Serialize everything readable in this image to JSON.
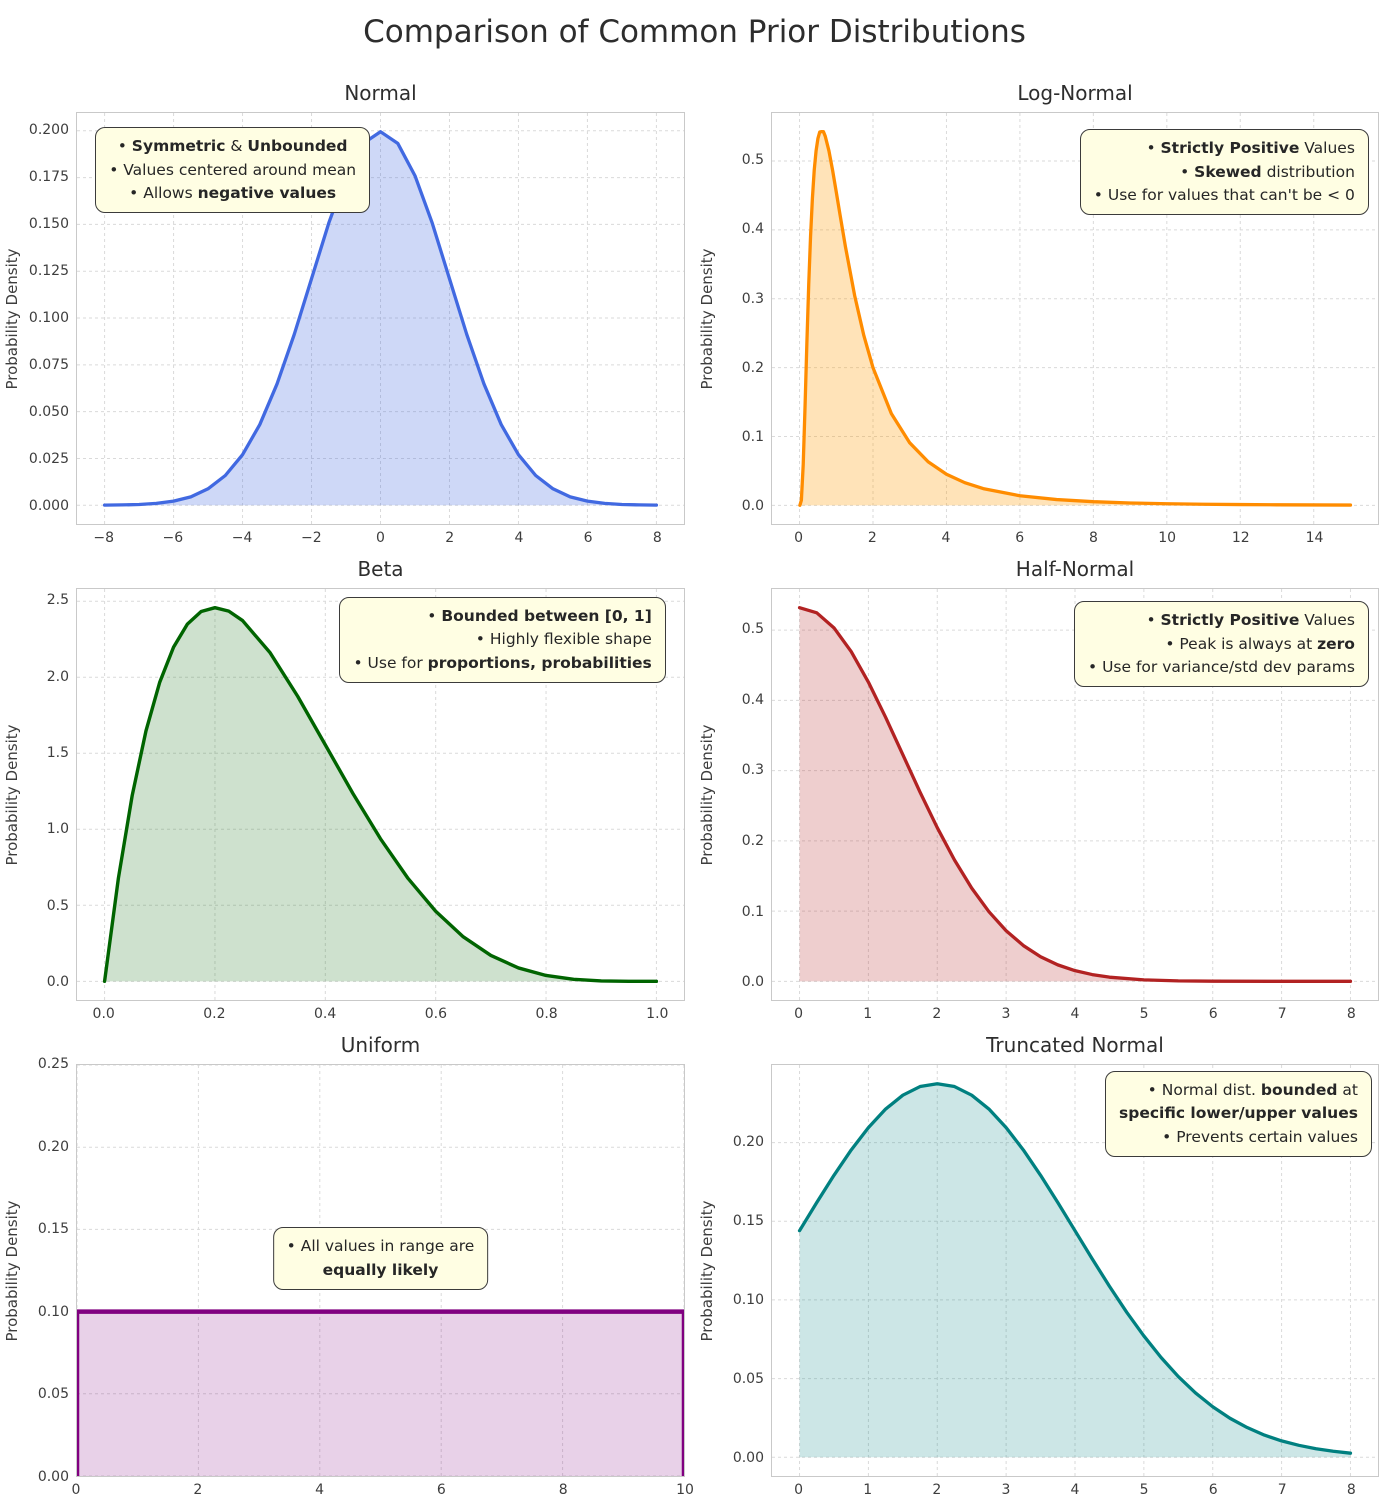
{
  "page_title": "Comparison of Common Prior Distributions",
  "chart_data": [
    {
      "type": "area",
      "title": "Normal",
      "ylabel": "Probability Density",
      "line_color": "#4169e1",
      "fill_color": "rgba(65,105,225,0.26)",
      "line_width": 3.3,
      "xlim": [
        -8.8,
        8.8
      ],
      "ylim": [
        -0.01,
        0.2095
      ],
      "xticks": [
        -8,
        -6,
        -4,
        -2,
        0,
        2,
        4,
        6,
        8
      ],
      "xtick_labels": [
        "−8",
        "−6",
        "−4",
        "−2",
        "0",
        "2",
        "4",
        "6",
        "8"
      ],
      "yticks": [
        0,
        0.025,
        0.05,
        0.075,
        0.1,
        0.125,
        0.15,
        0.175,
        0.2
      ],
      "ytick_labels": [
        "0.000",
        "0.025",
        "0.050",
        "0.075",
        "0.100",
        "0.125",
        "0.150",
        "0.175",
        "0.200"
      ],
      "x": [
        -8,
        -7.5,
        -7,
        -6.5,
        -6,
        -5.5,
        -5,
        -4.5,
        -4,
        -3.5,
        -3,
        -2.5,
        -2,
        -1.5,
        -1,
        -0.5,
        0,
        0.5,
        1,
        1.5,
        2,
        2.5,
        3,
        3.5,
        4,
        4.5,
        5,
        5.5,
        6,
        6.5,
        7,
        7.5,
        8
      ],
      "y": [
        0.0001,
        0.0002,
        0.0004,
        0.001,
        0.0022,
        0.0045,
        0.0088,
        0.0159,
        0.027,
        0.0431,
        0.0648,
        0.0913,
        0.121,
        0.1507,
        0.176,
        0.1933,
        0.1995,
        0.1933,
        0.176,
        0.1507,
        0.121,
        0.0913,
        0.0648,
        0.0431,
        0.027,
        0.0159,
        0.0088,
        0.0045,
        0.0022,
        0.001,
        0.0004,
        0.0002,
        0.0001
      ],
      "annotation": {
        "align": "center",
        "pos": {
          "left": "3%",
          "top": "3.5%"
        },
        "lines": [
          [
            {
              "t": "• ",
              "b": false
            },
            {
              "t": "Symmetric",
              "b": true
            },
            {
              "t": " & ",
              "b": false
            },
            {
              "t": "Unbounded",
              "b": true
            }
          ],
          [
            {
              "t": "• Values centered around mean",
              "b": false
            }
          ],
          [
            {
              "t": "• Allows ",
              "b": false
            },
            {
              "t": "negative values",
              "b": true
            }
          ]
        ]
      }
    },
    {
      "type": "area",
      "title": "Log-Normal",
      "ylabel": "Probability Density",
      "line_color": "#ff8c00",
      "fill_color": "rgba(255,153,0,0.28)",
      "line_width": 3.3,
      "xlim": [
        -0.75,
        15.75
      ],
      "ylim": [
        -0.0271,
        0.5698
      ],
      "xticks": [
        0,
        2,
        4,
        6,
        8,
        10,
        12,
        14
      ],
      "xtick_labels": [
        "0",
        "2",
        "4",
        "6",
        "8",
        "10",
        "12",
        "14"
      ],
      "yticks": [
        0,
        0.1,
        0.2,
        0.3,
        0.4,
        0.5
      ],
      "ytick_labels": [
        "0.0",
        "0.1",
        "0.2",
        "0.3",
        "0.4",
        "0.5"
      ],
      "x": [
        0.01,
        0.05,
        0.1,
        0.15,
        0.2,
        0.25,
        0.3,
        0.35,
        0.4,
        0.45,
        0.5,
        0.55,
        0.6,
        0.65,
        0.7,
        0.8,
        0.9,
        1,
        1.1,
        1.25,
        1.5,
        1.75,
        2,
        2.5,
        3,
        3.5,
        4,
        4.5,
        5,
        6,
        7,
        8,
        9,
        10,
        11,
        12,
        13,
        14,
        15
      ],
      "y": [
        0,
        0.0075,
        0.0592,
        0.144,
        0.2366,
        0.3209,
        0.391,
        0.4458,
        0.487,
        0.5148,
        0.5326,
        0.5423,
        0.5428,
        0.5427,
        0.536,
        0.5149,
        0.4866,
        0.455,
        0.4227,
        0.3755,
        0.3048,
        0.2467,
        0.1999,
        0.1332,
        0.0908,
        0.0633,
        0.0452,
        0.0329,
        0.0243,
        0.0139,
        0.0084,
        0.0053,
        0.0034,
        0.0023,
        0.0016,
        0.0011,
        0.0008,
        0.0006,
        0.0004
      ],
      "annotation": {
        "align": "right",
        "pos": {
          "right": "1.5%",
          "top": "4%"
        },
        "lines": [
          [
            {
              "t": "• ",
              "b": false
            },
            {
              "t": "Strictly Positive",
              "b": true
            },
            {
              "t": " Values",
              "b": false
            }
          ],
          [
            {
              "t": "• ",
              "b": false
            },
            {
              "t": "Skewed",
              "b": true
            },
            {
              "t": " distribution",
              "b": false
            }
          ],
          [
            {
              "t": "• Use for values that can't be < 0",
              "b": false
            }
          ]
        ]
      }
    },
    {
      "type": "area",
      "title": "Beta",
      "ylabel": "Probability Density",
      "line_color": "#006400",
      "fill_color": "rgba(34,120,34,0.22)",
      "line_width": 3.4,
      "xlim": [
        -0.05,
        1.05
      ],
      "ylim": [
        -0.1229,
        2.5805
      ],
      "xticks": [
        0,
        0.2,
        0.4,
        0.6,
        0.8,
        1
      ],
      "xtick_labels": [
        "0.0",
        "0.2",
        "0.4",
        "0.6",
        "0.8",
        "1.0"
      ],
      "yticks": [
        0,
        0.5,
        1,
        1.5,
        2,
        2.5
      ],
      "ytick_labels": [
        "0.0",
        "0.5",
        "1.0",
        "1.5",
        "2.0",
        "2.5"
      ],
      "x": [
        0,
        0.025,
        0.05,
        0.075,
        0.1,
        0.125,
        0.15,
        0.175,
        0.2,
        0.225,
        0.25,
        0.3,
        0.35,
        0.4,
        0.45,
        0.5,
        0.55,
        0.6,
        0.65,
        0.7,
        0.75,
        0.8,
        0.85,
        0.9,
        0.95,
        1
      ],
      "y": [
        0,
        0.6778,
        1.2218,
        1.6473,
        1.9683,
        2.1981,
        2.3495,
        2.4322,
        2.4576,
        2.4352,
        2.373,
        2.1609,
        1.8742,
        1.5552,
        1.2354,
        0.9375,
        0.6765,
        0.4608,
        0.2925,
        0.1701,
        0.0879,
        0.0384,
        0.0129,
        0.0027,
        0.0002,
        0
      ],
      "annotation": {
        "align": "right",
        "pos": {
          "right": "3%",
          "top": "2%"
        },
        "lines": [
          [
            {
              "t": "• ",
              "b": false
            },
            {
              "t": "Bounded between [0, 1]",
              "b": true
            }
          ],
          [
            {
              "t": "• Highly flexible shape",
              "b": false
            }
          ],
          [
            {
              "t": "• Use for ",
              "b": false
            },
            {
              "t": "proportions, probabilities",
              "b": true
            }
          ]
        ]
      }
    },
    {
      "type": "area",
      "title": "Half-Normal",
      "ylabel": "Probability Density",
      "line_color": "#b22222",
      "fill_color": "rgba(178,34,34,0.22)",
      "line_width": 3.3,
      "xlim": [
        -0.4,
        8.4
      ],
      "ylim": [
        -0.0266,
        0.5585
      ],
      "xticks": [
        0,
        1,
        2,
        3,
        4,
        5,
        6,
        7,
        8
      ],
      "xtick_labels": [
        "0",
        "1",
        "2",
        "3",
        "4",
        "5",
        "6",
        "7",
        "8"
      ],
      "yticks": [
        0,
        0.1,
        0.2,
        0.3,
        0.4,
        0.5
      ],
      "ytick_labels": [
        "0.0",
        "0.1",
        "0.2",
        "0.3",
        "0.4",
        "0.5"
      ],
      "x": [
        0,
        0.25,
        0.5,
        0.75,
        1,
        1.25,
        1.5,
        1.75,
        2,
        2.25,
        2.5,
        2.75,
        3,
        3.25,
        3.5,
        3.75,
        4,
        4.25,
        4.5,
        5,
        5.5,
        6,
        7,
        8
      ],
      "y": [
        0.5319,
        0.5246,
        0.5032,
        0.4694,
        0.4259,
        0.3758,
        0.3226,
        0.2693,
        0.2187,
        0.1727,
        0.1327,
        0.0991,
        0.072,
        0.0509,
        0.0349,
        0.0234,
        0.0152,
        0.0096,
        0.0059,
        0.0021,
        0.0006,
        0.0002,
        0,
        0
      ],
      "annotation": {
        "align": "right",
        "pos": {
          "right": "1.5%",
          "top": "3%"
        },
        "lines": [
          [
            {
              "t": "• ",
              "b": false
            },
            {
              "t": "Strictly Positive",
              "b": true
            },
            {
              "t": " Values",
              "b": false
            }
          ],
          [
            {
              "t": "• Peak is always at ",
              "b": false
            },
            {
              "t": "zero",
              "b": true
            }
          ],
          [
            {
              "t": "• Use for variance/std dev params",
              "b": false
            }
          ]
        ]
      }
    },
    {
      "type": "area",
      "title": "Uniform",
      "ylabel": "Probability Density",
      "line_color": "#800080",
      "fill_color": "rgba(128,0,128,0.18)",
      "line_width": 4.5,
      "xlim": [
        0,
        10
      ],
      "ylim": [
        0,
        0.25
      ],
      "xticks": [
        0,
        2,
        4,
        6,
        8,
        10
      ],
      "xtick_labels": [
        "0",
        "2",
        "4",
        "6",
        "8",
        "10"
      ],
      "yticks": [
        0,
        0.05,
        0.1,
        0.15,
        0.2,
        0.25
      ],
      "ytick_labels": [
        "0.00",
        "0.05",
        "0.10",
        "0.15",
        "0.20",
        "0.25"
      ],
      "x": [
        0,
        0,
        10,
        10
      ],
      "y": [
        0,
        0.1,
        0.1,
        0
      ],
      "annotation": {
        "align": "center",
        "center_x": true,
        "pos": {
          "left": "50%",
          "top": "39.5%"
        },
        "lines": [
          [
            {
              "t": "• All values in range are",
              "b": false
            }
          ],
          [
            {
              "t": "equally likely",
              "b": true
            }
          ]
        ]
      }
    },
    {
      "type": "area",
      "title": "Truncated Normal",
      "ylabel": "Probability Density",
      "line_color": "#008080",
      "fill_color": "rgba(0,128,128,0.2)",
      "line_width": 3.3,
      "xlim": [
        -0.4,
        8.4
      ],
      "ylim": [
        -0.0119,
        0.2493
      ],
      "xticks": [
        0,
        1,
        2,
        3,
        4,
        5,
        6,
        7,
        8
      ],
      "xtick_labels": [
        "0",
        "1",
        "2",
        "3",
        "4",
        "5",
        "6",
        "7",
        "8"
      ],
      "yticks": [
        0,
        0.05,
        0.1,
        0.15,
        0.2
      ],
      "ytick_labels": [
        "0.00",
        "0.05",
        "0.10",
        "0.15",
        "0.20"
      ],
      "x": [
        0,
        0.25,
        0.5,
        0.75,
        1,
        1.25,
        1.5,
        1.75,
        2,
        2.25,
        2.5,
        2.75,
        3,
        3.25,
        3.5,
        3.75,
        4,
        4.25,
        4.5,
        4.75,
        5,
        5.25,
        5.5,
        5.75,
        6,
        6.25,
        6.5,
        6.75,
        7,
        7.25,
        7.5,
        7.75,
        8
      ],
      "y": [
        0.144,
        0.1619,
        0.1792,
        0.1953,
        0.2095,
        0.2213,
        0.2301,
        0.2356,
        0.2374,
        0.2356,
        0.2301,
        0.2213,
        0.2095,
        0.1953,
        0.1792,
        0.1619,
        0.144,
        0.1261,
        0.1087,
        0.0922,
        0.0771,
        0.0634,
        0.0513,
        0.0409,
        0.0321,
        0.0248,
        0.0189,
        0.0141,
        0.0104,
        0.0076,
        0.0054,
        0.0038,
        0.0026
      ],
      "annotation": {
        "align": "right",
        "pos": {
          "right": "1%",
          "top": "1.5%"
        },
        "lines": [
          [
            {
              "t": "• Normal dist. ",
              "b": false
            },
            {
              "t": "bounded",
              "b": true
            },
            {
              "t": " at",
              "b": false
            }
          ],
          [
            {
              "t": "specific lower/upper values",
              "b": true
            }
          ],
          [
            {
              "t": "• Prevents certain values",
              "b": false
            }
          ]
        ]
      }
    }
  ]
}
